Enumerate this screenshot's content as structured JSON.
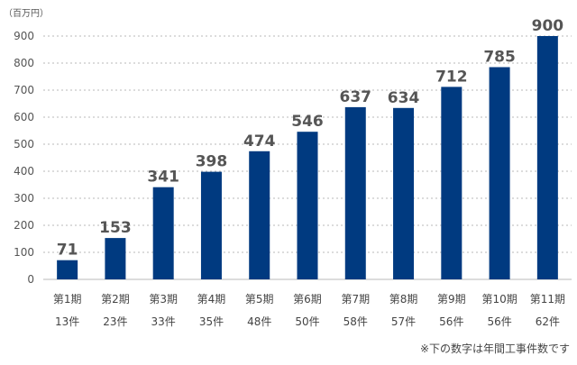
{
  "chart_data": {
    "type": "bar",
    "title": "",
    "unit_label": "（百万円）",
    "categories": [
      "第1期",
      "第2期",
      "第3期",
      "第4期",
      "第5期",
      "第6期",
      "第7期",
      "第8期",
      "第9期",
      "第10期",
      "第11期"
    ],
    "counts": [
      "13件",
      "23件",
      "33件",
      "35件",
      "48件",
      "50件",
      "58件",
      "57件",
      "56件",
      "56件",
      "62件"
    ],
    "values": [
      71,
      153,
      341,
      398,
      474,
      546,
      637,
      634,
      712,
      785,
      900
    ],
    "ylim": [
      0,
      900
    ],
    "yticks": [
      0,
      100,
      200,
      300,
      400,
      500,
      600,
      700,
      800,
      900
    ],
    "grid": true,
    "bar_color": "#003a80",
    "note": "※下の数字は年間工事件数です"
  }
}
